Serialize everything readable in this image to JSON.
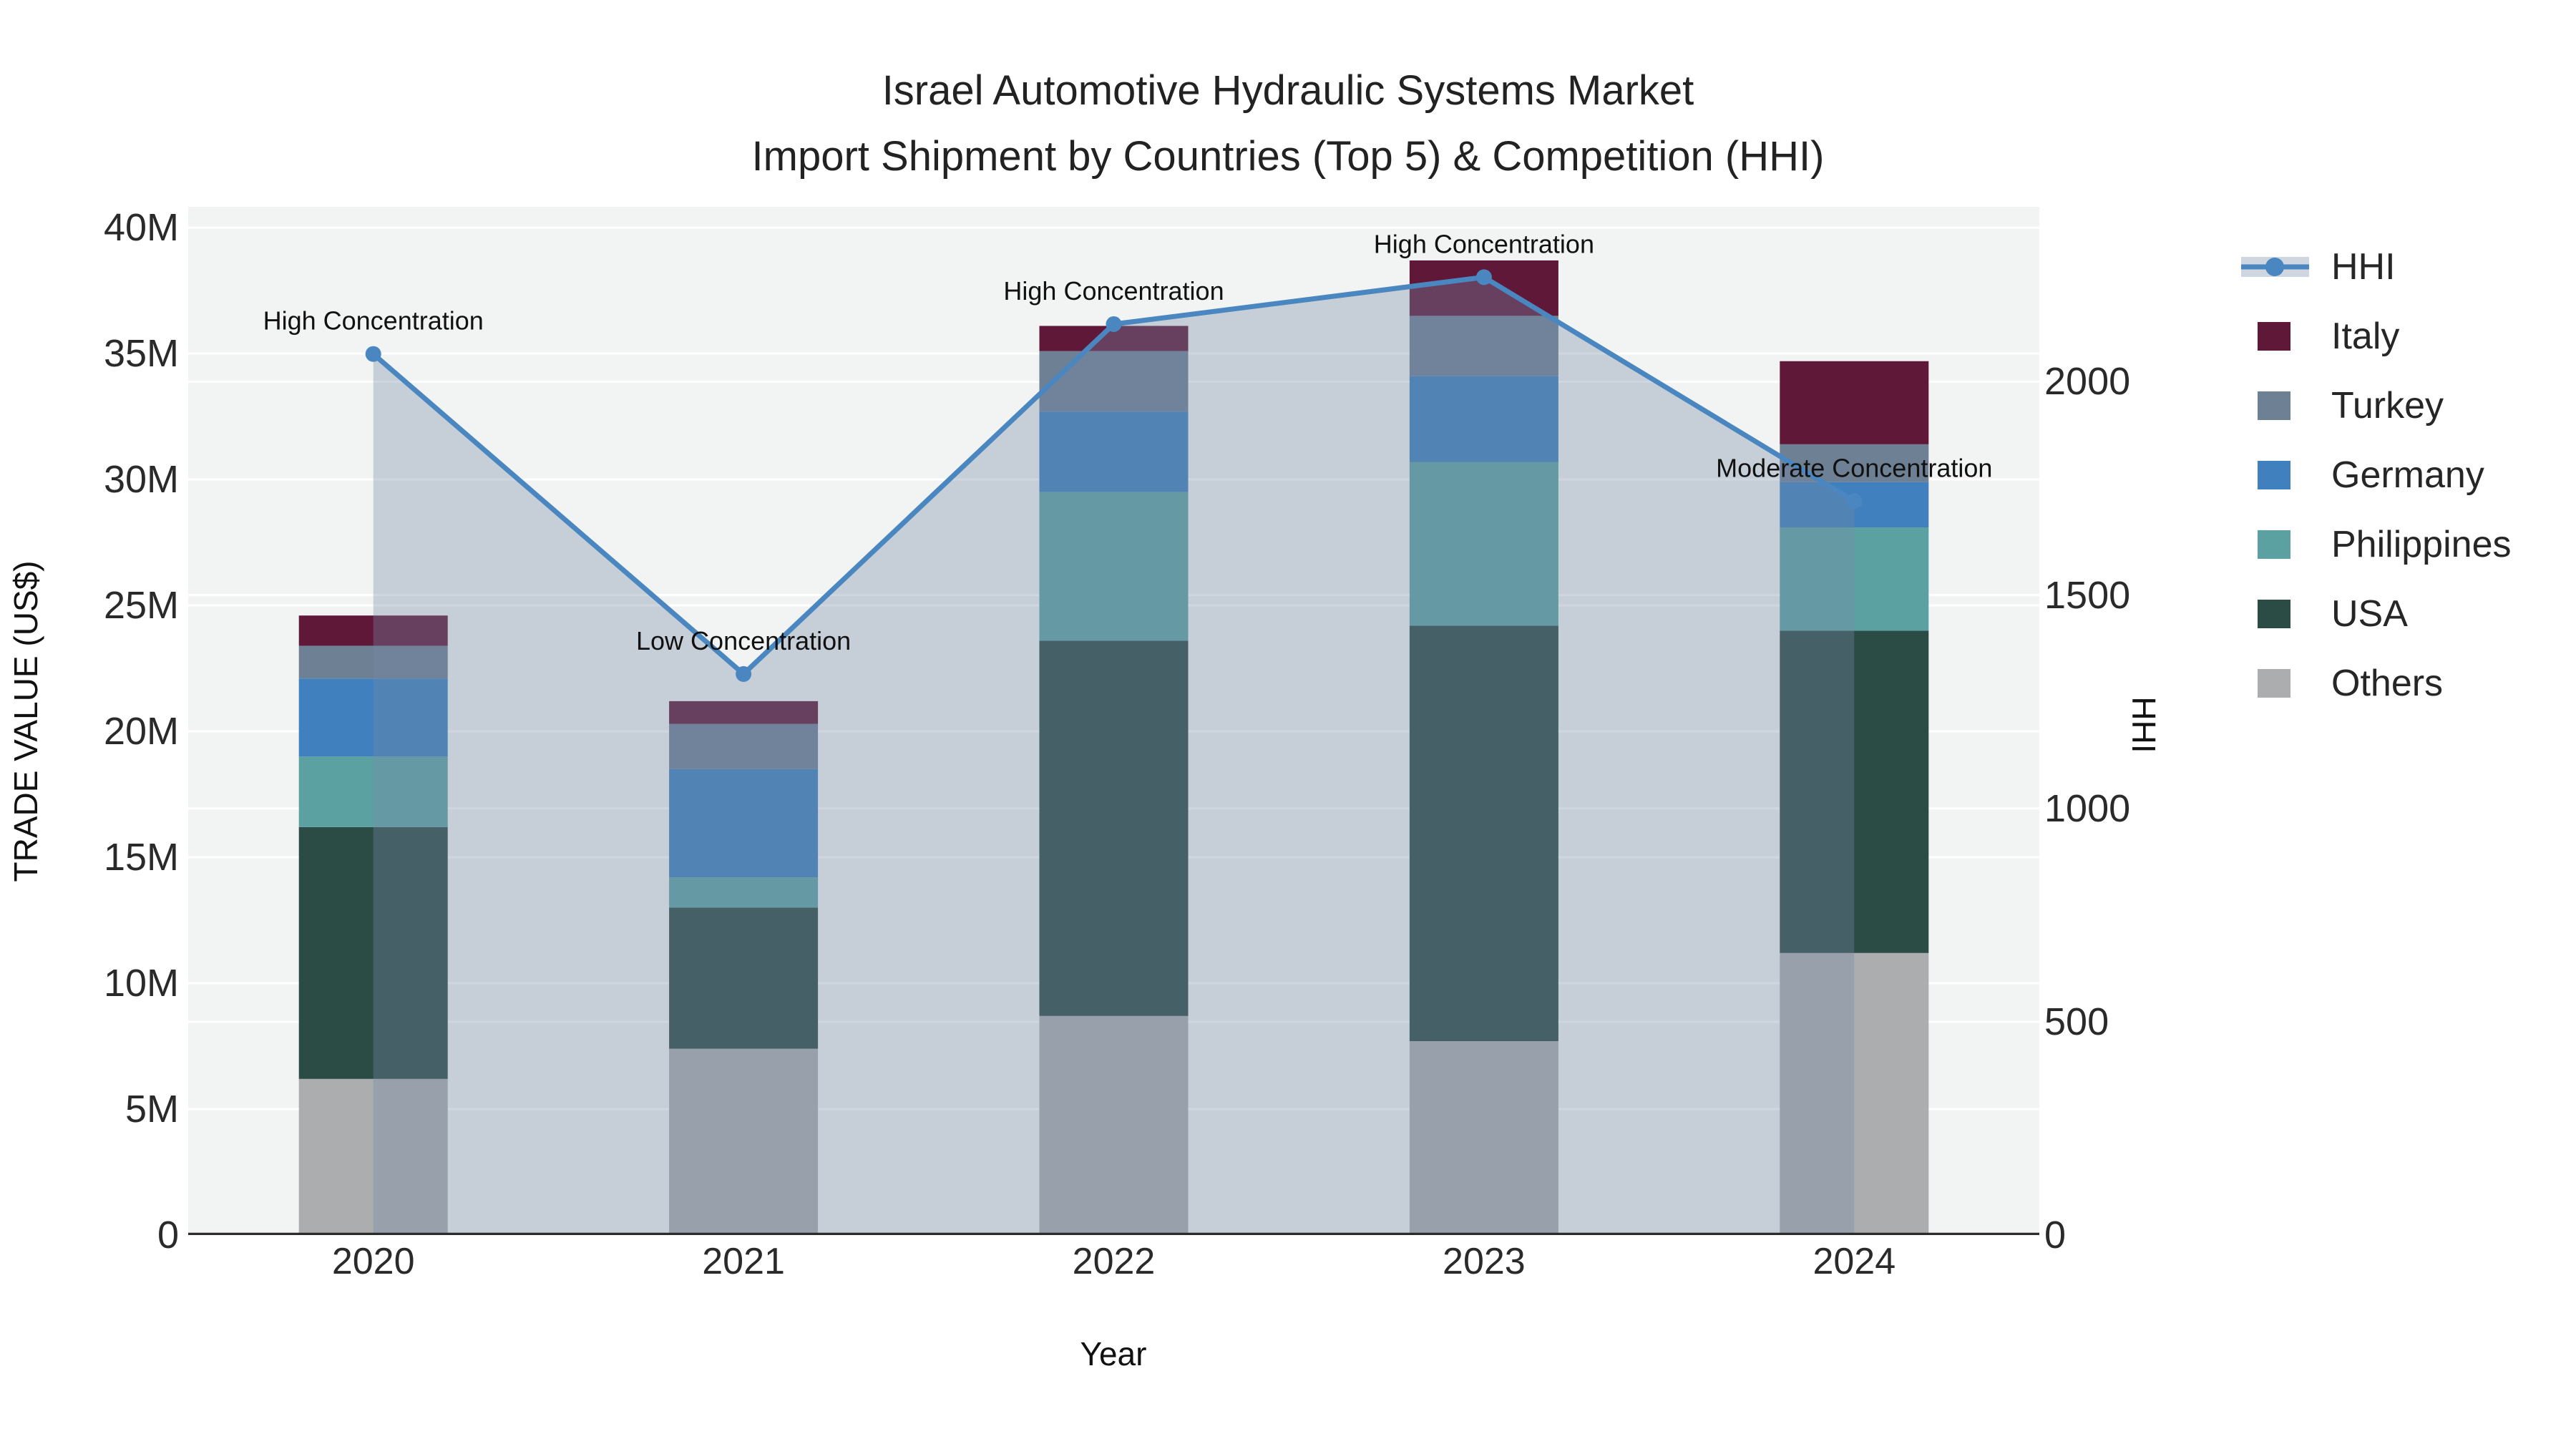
{
  "title": {
    "line1": "Israel Automotive Hydraulic Systems Market",
    "line2": "Import Shipment by Countries (Top 5) & Competition (HHI)"
  },
  "axes": {
    "x": {
      "title": "Year",
      "categories": [
        "2020",
        "2021",
        "2022",
        "2023",
        "2024"
      ]
    },
    "y_left": {
      "title": "TRADE VALUE (US$)",
      "tick_labels": [
        "0",
        "5M",
        "10M",
        "15M",
        "20M",
        "25M",
        "30M",
        "35M",
        "40M"
      ],
      "tick_values": [
        0,
        5,
        10,
        15,
        20,
        25,
        30,
        35,
        40
      ],
      "axis_max": 40.83
    },
    "y_right": {
      "title": "HHI",
      "tick_labels": [
        "0",
        "500",
        "1000",
        "1500",
        "2000"
      ],
      "tick_values": [
        0,
        500,
        1000,
        1500,
        2000
      ],
      "axis_max": 2410
    }
  },
  "legend": [
    {
      "label": "HHI",
      "type": "line",
      "color": "#4a87c0"
    },
    {
      "label": "Italy",
      "type": "square",
      "color": "#601839"
    },
    {
      "label": "Turkey",
      "type": "square",
      "color": "#6e8094"
    },
    {
      "label": "Germany",
      "type": "square",
      "color": "#4080be"
    },
    {
      "label": "Philippines",
      "type": "square",
      "color": "#5ca1a1"
    },
    {
      "label": "USA",
      "type": "square",
      "color": "#2b4b45"
    },
    {
      "label": "Others",
      "type": "square",
      "color": "#abadaf"
    }
  ],
  "colors": {
    "plot_bg": "#f2f3f3",
    "gridline": "#ffffff",
    "axis_line": "#2b2b2b",
    "hhi_line": "#4a87c0",
    "hhi_fill": "rgba(118,138,167,0.35)",
    "annotation_text": "#111111"
  },
  "chart_data": {
    "type": "stacked-bar+line",
    "categories": [
      "2020",
      "2021",
      "2022",
      "2023",
      "2024"
    ],
    "bar_unit": "million US$",
    "series": [
      {
        "name": "Others",
        "color": "#abadaf",
        "values": [
          6.2,
          7.4,
          8.7,
          7.7,
          11.2
        ]
      },
      {
        "name": "USA",
        "color": "#2b4b45",
        "values": [
          10.0,
          5.6,
          14.9,
          16.5,
          12.8
        ]
      },
      {
        "name": "Philippines",
        "color": "#5ca1a1",
        "values": [
          2.8,
          1.2,
          5.9,
          6.5,
          4.1
        ]
      },
      {
        "name": "Germany",
        "color": "#4080be",
        "values": [
          3.1,
          4.3,
          3.2,
          3.4,
          1.8
        ]
      },
      {
        "name": "Turkey",
        "color": "#6e8094",
        "values": [
          1.3,
          1.8,
          2.4,
          2.4,
          1.5
        ]
      },
      {
        "name": "Italy",
        "color": "#601839",
        "values": [
          1.2,
          0.9,
          1.0,
          2.2,
          3.3
        ]
      }
    ],
    "bar_totals": [
      24.6,
      21.2,
      36.1,
      38.7,
      34.7
    ],
    "line": {
      "name": "HHI",
      "color": "#4a87c0",
      "values": [
        2065,
        1315,
        2135,
        2245,
        1720
      ],
      "fill": "tozeroy"
    },
    "annotations": [
      {
        "category": "2020",
        "text": "High Concentration"
      },
      {
        "category": "2021",
        "text": "Low Concentration"
      },
      {
        "category": "2022",
        "text": "High Concentration"
      },
      {
        "category": "2023",
        "text": "High Concentration"
      },
      {
        "category": "2024",
        "text": "Moderate Concentration"
      }
    ],
    "ylabel": "TRADE VALUE (US$)",
    "y2label": "HHI",
    "xlabel": "Year",
    "ylim_left_musd": [
      0,
      40.83
    ],
    "ylim_right_hhi": [
      0,
      2410
    ],
    "grid": true,
    "legend_position": "right"
  }
}
